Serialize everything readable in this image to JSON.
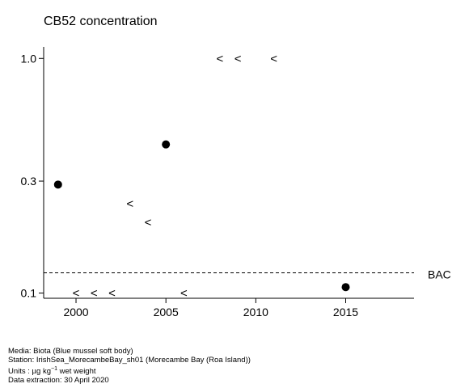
{
  "chart_data": {
    "type": "scatter",
    "title": "CB52 concentration",
    "y_scale": "log",
    "xlim": [
      1998.2,
      2018.8
    ],
    "ylim": [
      0.095,
      1.12
    ],
    "x_ticks": [
      2000,
      2005,
      2010,
      2015
    ],
    "y_ticks": [
      {
        "value": 0.1,
        "label": "0.1"
      },
      {
        "value": 0.3,
        "label": "0.3"
      },
      {
        "value": 1.0,
        "label": "1.0"
      }
    ],
    "grid": false,
    "series": [
      {
        "marker": "filled-circle",
        "points": [
          {
            "x": 1999,
            "y": 0.29
          },
          {
            "x": 2005,
            "y": 0.43
          },
          {
            "x": 2015,
            "y": 0.106
          }
        ]
      },
      {
        "marker": "less-than",
        "points": [
          {
            "x": 2000,
            "y": 0.1
          },
          {
            "x": 2001,
            "y": 0.1
          },
          {
            "x": 2002,
            "y": 0.1
          },
          {
            "x": 2003,
            "y": 0.24
          },
          {
            "x": 2004,
            "y": 0.2
          },
          {
            "x": 2006,
            "y": 0.1
          },
          {
            "x": 2008,
            "y": 1.0
          },
          {
            "x": 2009,
            "y": 1.0
          },
          {
            "x": 2011,
            "y": 1.0
          }
        ]
      }
    ],
    "reference_lines": [
      {
        "label": "BAC",
        "y": 0.122,
        "style": "dashed"
      }
    ]
  },
  "footer": {
    "media": "Media: Biota (Blue mussel soft body)",
    "station": "Station: IrishSea_MorecambeBay_sh01 (Morecambe Bay (Roa Island))",
    "units_prefix": "Units : µg kg",
    "units_exponent": "−1",
    "units_suffix": " wet weight",
    "extraction": "Data extraction: 30 April 2020"
  }
}
